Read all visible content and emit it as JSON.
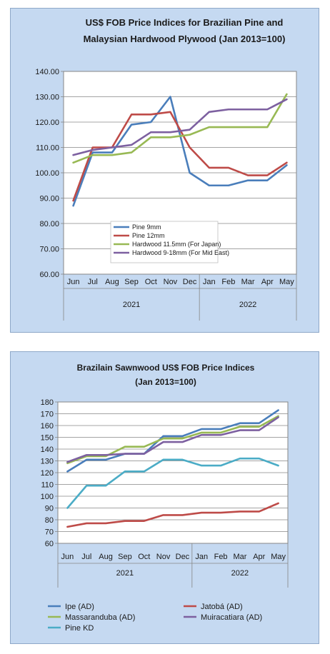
{
  "charts": [
    {
      "type": "line",
      "title_lines": [
        "US$ FOB Price Indices for Brazilian Pine and",
        "Malaysian Hardwood Plywood (Jan 2013=100)"
      ],
      "categories": [
        "Jun",
        "Jul",
        "Aug",
        "Sep",
        "Oct",
        "Nov",
        "Dec",
        "Jan",
        "Feb",
        "Mar",
        "Apr",
        "May"
      ],
      "year_groups": [
        {
          "label": "2021",
          "from": 0,
          "to": 6
        },
        {
          "label": "2022",
          "from": 7,
          "to": 11
        }
      ],
      "ylim": [
        60,
        140
      ],
      "y_ticks": [
        "60.00",
        "70.00",
        "80.00",
        "90.00",
        "100.00",
        "110.00",
        "120.00",
        "130.00",
        "140.00"
      ],
      "legend_placement": "inside-bottom-center",
      "series": [
        {
          "name": "Pine 9mm",
          "color": "#4a7ebb",
          "values": [
            87,
            108,
            108,
            119,
            120,
            130,
            100,
            95,
            95,
            97,
            97,
            103
          ]
        },
        {
          "name": "Pine 12mm",
          "color": "#be4b48",
          "values": [
            89,
            110,
            110,
            123,
            123,
            124,
            110,
            102,
            102,
            99,
            99,
            104
          ]
        },
        {
          "name": "Hardwood 11.5mm (For Japan)",
          "color": "#98b954",
          "values": [
            104,
            107,
            107,
            108,
            114,
            114,
            115,
            118,
            118,
            118,
            118,
            131
          ]
        },
        {
          "name": "Hardwood 9-18mm (For Mid East)",
          "color": "#7d60a0",
          "values": [
            107,
            109,
            110,
            111,
            116,
            116,
            117,
            124,
            125,
            125,
            125,
            129
          ]
        }
      ]
    },
    {
      "type": "line",
      "title_lines": [
        "Brazilain Sawnwood US$ FOB Price Indices",
        "(Jan 2013=100)"
      ],
      "categories": [
        "Jun",
        "Jul",
        "Aug",
        "Sep",
        "Oct",
        "Nov",
        "Dec",
        "Jan",
        "Feb",
        "Mar",
        "Apr",
        "May"
      ],
      "year_groups": [
        {
          "label": "2021",
          "from": 0,
          "to": 6
        },
        {
          "label": "2022",
          "from": 7,
          "to": 11
        }
      ],
      "ylim": [
        60,
        180
      ],
      "y_ticks": [
        "60",
        "70",
        "80",
        "90",
        "100",
        "110",
        "120",
        "130",
        "140",
        "150",
        "160",
        "170",
        "180"
      ],
      "legend_placement": "bottom",
      "series": [
        {
          "name": "Ipe (AD)",
          "color": "#4a7ebb",
          "values": [
            121,
            131,
            131,
            136,
            136,
            151,
            151,
            157,
            157,
            162,
            162,
            173
          ]
        },
        {
          "name": "Jatobá (AD)",
          "color": "#be4b48",
          "values": [
            74,
            77,
            77,
            79,
            79,
            84,
            84,
            86,
            86,
            87,
            87,
            94
          ]
        },
        {
          "name": "Massaranduba (AD)",
          "color": "#98b954",
          "values": [
            128,
            134,
            134,
            142,
            142,
            149,
            149,
            154,
            154,
            159,
            159,
            168
          ]
        },
        {
          "name": "Muiracatiara (AD)",
          "color": "#7d60a0",
          "values": [
            129,
            135,
            135,
            136,
            136,
            146,
            146,
            152,
            152,
            156,
            156,
            167
          ]
        },
        {
          "name": "Pine KD",
          "color": "#4bacc6",
          "values": [
            90,
            109,
            109,
            121,
            121,
            131,
            131,
            126,
            126,
            132,
            132,
            126
          ]
        }
      ]
    }
  ]
}
